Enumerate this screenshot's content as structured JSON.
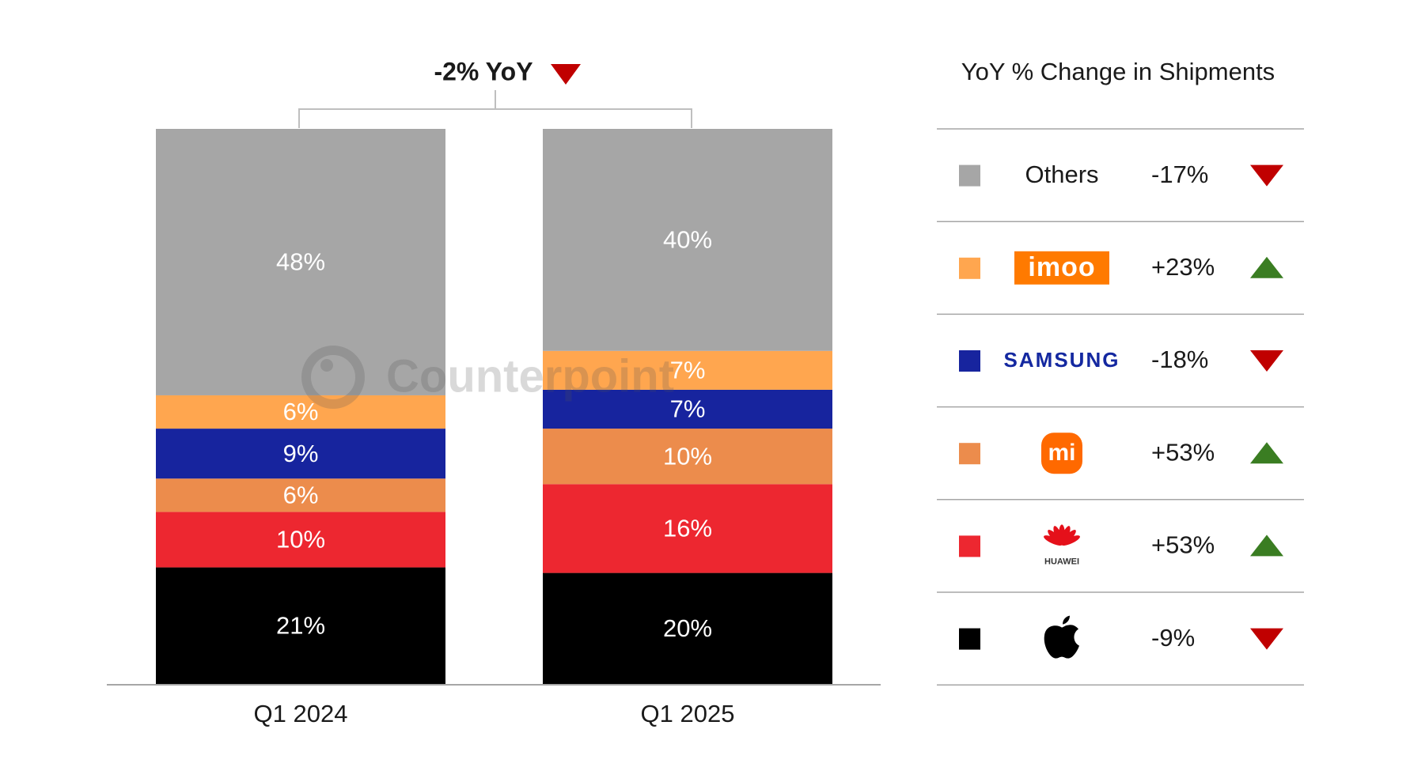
{
  "chart_data": {
    "type": "stacked_bar",
    "annotation": "-2% YoY",
    "legend_title": "YoY % Change in Shipments",
    "watermark": "Counterpoint",
    "categories": [
      "Q1 2024",
      "Q1 2025"
    ],
    "ylim": [
      0,
      100
    ],
    "series": [
      {
        "color": "#000000",
        "values": [
          21,
          20
        ],
        "value_labels": [
          "21%",
          "20%"
        ],
        "change": {
          "value": -9,
          "label": "-9%"
        }
      },
      {
        "name": "HUAWEI",
        "color": "#ed2730",
        "values": [
          10,
          16
        ],
        "value_labels": [
          "10%",
          "16%"
        ],
        "change": {
          "value": 53,
          "label": "+53%"
        }
      },
      {
        "name": "mi",
        "color": "#ec8c4c",
        "values": [
          6,
          10
        ],
        "value_labels": [
          "6%",
          "10%"
        ],
        "change": {
          "value": 53,
          "label": "+53%"
        }
      },
      {
        "name": "SAMSUNG",
        "color": "#17249e",
        "values": [
          9,
          7
        ],
        "value_labels": [
          "9%",
          "7%"
        ],
        "change": {
          "value": -18,
          "label": "-18%"
        }
      },
      {
        "name": "imoo",
        "color": "#ffa64f",
        "values": [
          6,
          7
        ],
        "value_labels": [
          "6%",
          "7%"
        ],
        "change": {
          "value": 23,
          "label": "+23%"
        }
      },
      {
        "name": "Others",
        "color": "#a6a6a6",
        "values": [
          48,
          40
        ],
        "value_labels": [
          "48%",
          "40%"
        ],
        "change": {
          "value": -17,
          "label": "-17%"
        }
      }
    ]
  }
}
